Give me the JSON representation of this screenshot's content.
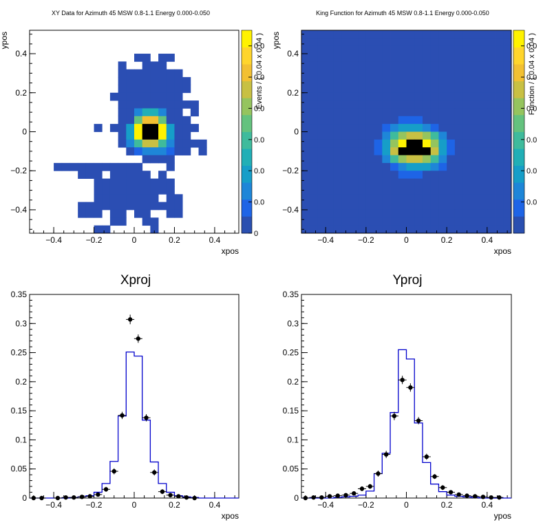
{
  "colors": {
    "palette": [
      "#2a4fb0",
      "#1e64e6",
      "#1e86d8",
      "#169ec8",
      "#21afb6",
      "#3fbb9c",
      "#64c27e",
      "#95c45e",
      "#c8c043",
      "#f2c032",
      "#ffd52c",
      "#fff200"
    ],
    "background_bin": "#2b4eb3",
    "curve": "#0000cc",
    "points": "#000000"
  },
  "chart_data": [
    {
      "type": "heatmap",
      "title": "XY Data for Azimuth 45 MSW 0.8-1.1 Energy 0.000-0.050",
      "xlabel": "xpos",
      "ylabel": "ypos",
      "zlabel": "Events / ( 0.04 x 0.04 )",
      "xlim": [
        -0.52,
        0.52
      ],
      "ylim": [
        -0.52,
        0.52
      ],
      "zlim": [
        0,
        0.065
      ],
      "x_ticks": [
        "−0.4",
        "−0.2",
        "0",
        "0.2",
        "0.4"
      ],
      "x_tick_values": [
        -0.4,
        -0.2,
        0,
        0.2,
        0.4
      ],
      "y_ticks": [
        "−0.4",
        "−0.2",
        "0",
        "0.2",
        "0.4"
      ],
      "y_tick_values": [
        -0.4,
        -0.2,
        0,
        0.2,
        0.4
      ],
      "z_ticks": [
        "0",
        "0.0",
        "0.0",
        "0.0",
        "0.0",
        "0.0",
        "0.0"
      ],
      "z_tick_values": [
        0,
        0.01,
        0.02,
        0.03,
        0.04,
        0.05,
        0.06
      ],
      "bin_width": 0.04,
      "x_edge_start": -0.52,
      "y_edge_start": -0.52,
      "grid": [
        "..........................",
        "..........................",
        "..........................",
        ".............##.##........",
        "...........#..###.........",
        "...........########.......",
        "...........#########......",
        "...........#########......",
        "..........#########.......",
        "...........##########.....",
        "...........##ceec##.#.....",
        "...........##gjjg###......",
        "........#.##dlmmld###.....",
        "...........#dlmmld##......",
        "...........#cfiifc####....",
        "............#bcccb##.#....",
        "..............####.......",
        "...###########...#.......",
        "......###.#####.#.........",
        "........##########.......",
        "........##########.......",
        "........########.##.......",
        "......#############.......",
        "......###.##.##..##.......",
        "..........##..##..........",
        "........##.....#.........."
      ]
    },
    {
      "type": "heatmap",
      "title": "King Function for Azimuth 45 MSW 0.8-1.1 Energy 0.000-0.050",
      "xlabel": "xpos",
      "ylabel": "ypos",
      "zlabel": "Function / ( 0.04 x 0.04 )",
      "xlim": [
        -0.52,
        0.52
      ],
      "ylim": [
        -0.52,
        0.52
      ],
      "zlim": [
        0,
        0.065
      ],
      "x_ticks": [
        "−0.4",
        "−0.2",
        "0",
        "0.2",
        "0.4"
      ],
      "x_tick_values": [
        -0.4,
        -0.2,
        0,
        0.2,
        0.4
      ],
      "y_ticks": [
        "−0.4",
        "−0.2",
        "0",
        "0.2",
        "0.4"
      ],
      "y_tick_values": [
        -0.4,
        -0.2,
        0,
        0.2,
        0.4
      ],
      "z_ticks": [
        "0.0",
        "0.0",
        "0.0",
        "0.0",
        "0.0",
        "0.0"
      ],
      "z_tick_values": [
        0.01,
        0.02,
        0.03,
        0.04,
        0.05,
        0.06
      ],
      "bin_width": 0.04,
      "x_edge_start": -0.52,
      "y_edge_start": -0.52,
      "grid": [
        "##########################",
        "##########################",
        "##########################",
        "##########################",
        "##########################",
        "##########################",
        "##########################",
        "##########################",
        "##########################",
        "##########################",
        "##########################",
        "############bbb###########",
        "##########bcdddcb#########",
        "##########cfhiihfc########",
        "#########bdhlmmlhdb#######",
        "#########bdimmmmidb#######",
        "##########cfhiihfc########",
        "###########bcdddcb########",
        "############bbb###########",
        "##########################",
        "##########################",
        "##########################",
        "##########################",
        "##########################",
        "##########################",
        "##########################"
      ]
    },
    {
      "type": "line",
      "title": "Xproj",
      "xlabel": "xpos",
      "ylabel": "",
      "xlim": [
        -0.52,
        0.52
      ],
      "ylim": [
        0,
        0.35
      ],
      "x_ticks": [
        "−0.4",
        "−0.2",
        "0",
        "0.2",
        "0.4"
      ],
      "x_tick_values": [
        -0.4,
        -0.2,
        0,
        0.2,
        0.4
      ],
      "y_ticks": [
        "0",
        "0.05",
        "0.1",
        "0.15",
        "0.2",
        "0.25",
        "0.3",
        "0.35"
      ],
      "y_tick_values": [
        0,
        0.05,
        0.1,
        0.15,
        0.2,
        0.25,
        0.3,
        0.35
      ],
      "bin_edges": [
        -0.52,
        -0.48,
        -0.44,
        -0.4,
        -0.36,
        -0.32,
        -0.28,
        -0.24,
        -0.2,
        -0.16,
        -0.12,
        -0.08,
        -0.04,
        0.0,
        0.04,
        0.08,
        0.12,
        0.16,
        0.2,
        0.24,
        0.28,
        0.32,
        0.36,
        0.4,
        0.44,
        0.48,
        0.52
      ],
      "series": [
        {
          "name": "model",
          "style": "step",
          "values": [
            0,
            0,
            0,
            0,
            0,
            0.001,
            0.002,
            0.004,
            0.01,
            0.025,
            0.063,
            0.141,
            0.251,
            0.244,
            0.134,
            0.062,
            0.025,
            0.01,
            0.004,
            0.002,
            0.001,
            0,
            0,
            0,
            0,
            0
          ]
        },
        {
          "name": "data",
          "style": "points",
          "x": [
            -0.5,
            -0.46,
            -0.38,
            -0.34,
            -0.3,
            -0.26,
            -0.22,
            -0.18,
            -0.14,
            -0.1,
            -0.06,
            -0.02,
            0.02,
            0.06,
            0.1,
            0.14,
            0.18,
            0.22,
            0.26,
            0.3
          ],
          "values": [
            0,
            0,
            0,
            0.001,
            0.001,
            0.002,
            0.003,
            0.006,
            0.015,
            0.046,
            0.142,
            0.307,
            0.274,
            0.138,
            0.044,
            0.011,
            0.005,
            0.003,
            0.001,
            0
          ],
          "errors": [
            0.001,
            0.001,
            0.001,
            0.001,
            0.001,
            0.001,
            0.002,
            0.002,
            0.003,
            0.004,
            0.005,
            0.007,
            0.006,
            0.005,
            0.004,
            0.003,
            0.002,
            0.002,
            0.001,
            0.001
          ]
        }
      ]
    },
    {
      "type": "line",
      "title": "Yproj",
      "xlabel": "ypos",
      "ylabel": "",
      "xlim": [
        -0.52,
        0.52
      ],
      "ylim": [
        0,
        0.35
      ],
      "x_ticks": [
        "−0.4",
        "−0.2",
        "0",
        "0.2",
        "0.4"
      ],
      "x_tick_values": [
        -0.4,
        -0.2,
        0,
        0.2,
        0.4
      ],
      "y_ticks": [
        "0",
        "0.05",
        "0.1",
        "0.15",
        "0.2",
        "0.25",
        "0.3",
        "0.35"
      ],
      "y_tick_values": [
        0,
        0.05,
        0.1,
        0.15,
        0.2,
        0.25,
        0.3,
        0.35
      ],
      "bin_edges": [
        -0.52,
        -0.48,
        -0.44,
        -0.4,
        -0.36,
        -0.32,
        -0.28,
        -0.24,
        -0.2,
        -0.16,
        -0.12,
        -0.08,
        -0.04,
        0.0,
        0.04,
        0.08,
        0.12,
        0.16,
        0.2,
        0.24,
        0.28,
        0.32,
        0.36,
        0.4,
        0.44,
        0.48,
        0.52
      ],
      "series": [
        {
          "name": "model",
          "style": "step",
          "values": [
            0,
            0,
            0,
            0,
            0.001,
            0.002,
            0.003,
            0.005,
            0.012,
            0.042,
            0.077,
            0.147,
            0.255,
            0.239,
            0.129,
            0.061,
            0.024,
            0.011,
            0.005,
            0.003,
            0.002,
            0.001,
            0,
            0,
            0,
            0
          ]
        },
        {
          "name": "data",
          "style": "points",
          "x": [
            -0.5,
            -0.46,
            -0.42,
            -0.38,
            -0.34,
            -0.3,
            -0.26,
            -0.22,
            -0.18,
            -0.14,
            -0.1,
            -0.06,
            -0.02,
            0.02,
            0.06,
            0.1,
            0.14,
            0.18,
            0.22,
            0.26,
            0.3,
            0.34,
            0.38,
            0.42,
            0.46
          ],
          "values": [
            0,
            0.001,
            0.001,
            0.003,
            0.004,
            0.005,
            0.008,
            0.016,
            0.02,
            0.042,
            0.075,
            0.141,
            0.203,
            0.19,
            0.133,
            0.071,
            0.037,
            0.018,
            0.01,
            0.006,
            0.004,
            0.003,
            0.002,
            0.001,
            0.001
          ],
          "errors": [
            0.001,
            0.001,
            0.001,
            0.002,
            0.002,
            0.002,
            0.002,
            0.003,
            0.003,
            0.004,
            0.005,
            0.006,
            0.006,
            0.006,
            0.005,
            0.004,
            0.003,
            0.003,
            0.002,
            0.002,
            0.002,
            0.001,
            0.001,
            0.001,
            0.001
          ]
        }
      ]
    }
  ]
}
